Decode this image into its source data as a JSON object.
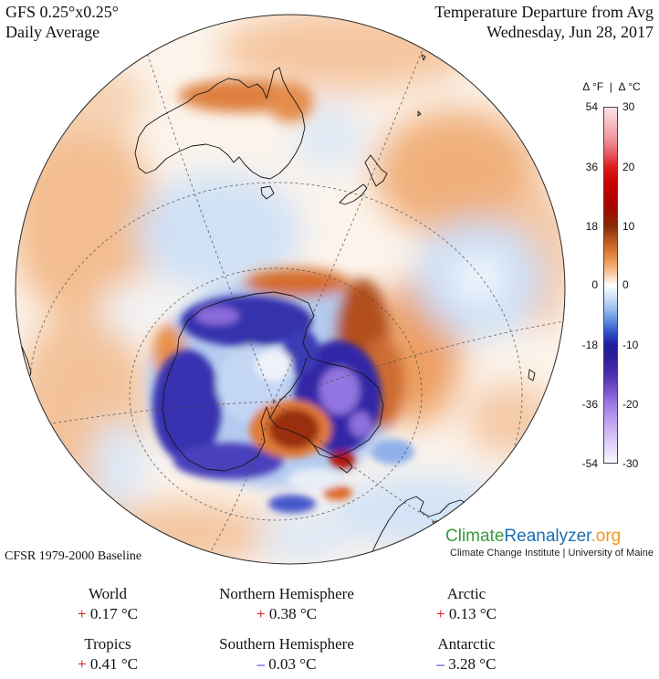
{
  "header": {
    "model": "GFS 0.25°x0.25°",
    "period": "Daily Average",
    "title": "Temperature Departure from Avg",
    "date": "Wednesday, Jun 28, 2017"
  },
  "colorbar": {
    "header": "Δ °F  |  Δ °C",
    "fahrenheit_ticks": [
      "54",
      "36",
      "18",
      "0",
      "-18",
      "-36",
      "-54"
    ],
    "celsius_ticks": [
      "30",
      "20",
      "10",
      "0",
      "-10",
      "-20",
      "-30"
    ],
    "range_c": [
      -30,
      30
    ],
    "stops_c": [
      {
        "value": 30,
        "color": "#fbe3e5"
      },
      {
        "value": 25,
        "color": "#f29aa0"
      },
      {
        "value": 22,
        "color": "#e65560"
      },
      {
        "value": 20,
        "color": "#dd1c1c"
      },
      {
        "value": 17,
        "color": "#c80000"
      },
      {
        "value": 14,
        "color": "#b00000"
      },
      {
        "value": 12,
        "color": "#9a1400"
      },
      {
        "value": 10,
        "color": "#8a2a0a"
      },
      {
        "value": 8,
        "color": "#b0501a"
      },
      {
        "value": 6,
        "color": "#d57330"
      },
      {
        "value": 4,
        "color": "#ee9a58"
      },
      {
        "value": 2,
        "color": "#f8c9a0"
      },
      {
        "value": 0,
        "color": "#ffffff"
      },
      {
        "value": -2,
        "color": "#cfe2f8"
      },
      {
        "value": -4,
        "color": "#99c0f0"
      },
      {
        "value": -6,
        "color": "#5f8ee0"
      },
      {
        "value": -8,
        "color": "#3050c8"
      },
      {
        "value": -10,
        "color": "#1e20a0"
      },
      {
        "value": -12,
        "color": "#2a1e98"
      },
      {
        "value": -15,
        "color": "#4b2fb0"
      },
      {
        "value": -18,
        "color": "#7a55d0"
      },
      {
        "value": -20,
        "color": "#9b78e4"
      },
      {
        "value": -24,
        "color": "#c8aef4"
      },
      {
        "value": -30,
        "color": "#fbf8ff"
      }
    ]
  },
  "baseline": "CFSR 1979-2000 Baseline",
  "logo": {
    "part1": "Climate",
    "part2": "Reanalyzer",
    "part3": ".org",
    "subtitle": "Climate Change Institute | University of Maine",
    "colors": {
      "part1": "#3a9b3f",
      "part2": "#1b6fb5",
      "part3": "#f0961c"
    }
  },
  "stats": [
    {
      "region": "World",
      "sign": "+",
      "value": "0.17 °C"
    },
    {
      "region": "Northern Hemisphere",
      "sign": "+",
      "value": "0.38 °C"
    },
    {
      "region": "Arctic",
      "sign": "+",
      "value": "0.13 °C"
    },
    {
      "region": "Tropics",
      "sign": "+",
      "value": "0.41 °C"
    },
    {
      "region": "Southern Hemisphere",
      "sign": "–",
      "value": "0.03 °C"
    },
    {
      "region": "Antarctic",
      "sign": "–",
      "value": "3.28 °C"
    }
  ],
  "colors": {
    "positive_sign": "#d40000",
    "negative_sign": "#1414b4"
  }
}
